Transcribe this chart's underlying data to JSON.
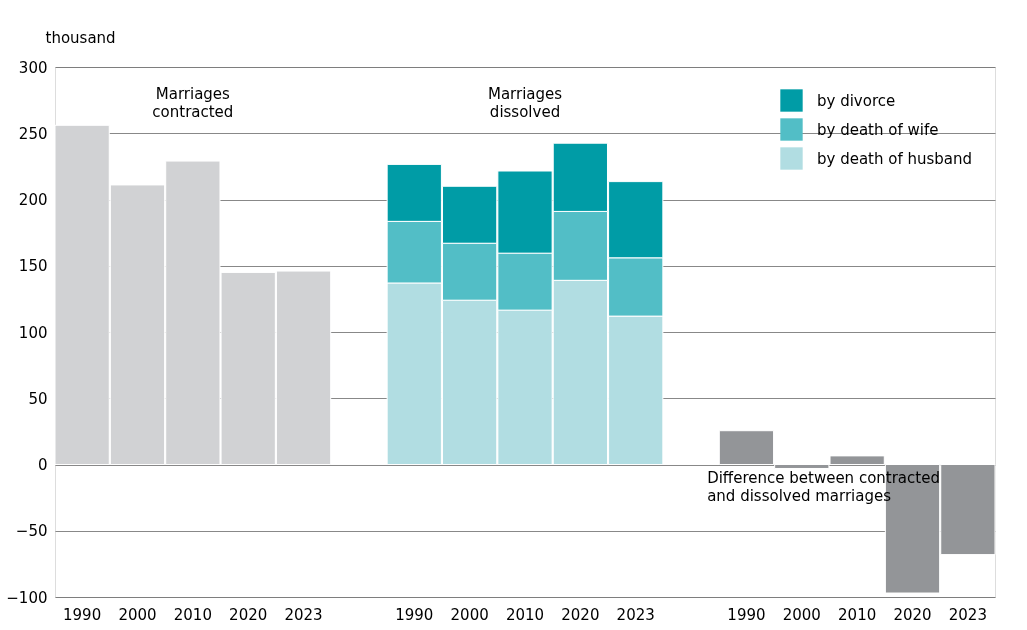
{
  "chart_data": {
    "type": "bar",
    "stacked": true,
    "ylabel": "thousand",
    "categories": [
      "1990",
      "2000",
      "2010",
      "2020",
      "2023",
      null,
      "1990",
      "2000",
      "2010",
      "2020",
      "2023",
      null,
      "1990",
      "2000",
      "2010",
      "2020",
      "2023"
    ],
    "series": [
      {
        "color": "#d1d2d4",
        "values": [
          256,
          211,
          229,
          145,
          146,
          null,
          null,
          null,
          null,
          null,
          null,
          null,
          null,
          null,
          null,
          null,
          null
        ]
      },
      {
        "name": "by death of husband",
        "color": "#b1dde2",
        "values": [
          null,
          null,
          null,
          null,
          null,
          null,
          137,
          124,
          116.5,
          139,
          112,
          null,
          null,
          null,
          null,
          null,
          null
        ]
      },
      {
        "name": "by death of wife",
        "color": "#52bec6",
        "values": [
          null,
          null,
          null,
          null,
          null,
          null,
          46.5,
          43,
          43,
          52,
          44,
          null,
          null,
          null,
          null,
          null,
          null
        ]
      },
      {
        "name": "by divorce",
        "color": "#009ca6",
        "values": [
          null,
          null,
          null,
          null,
          null,
          null,
          43,
          43,
          62,
          51.5,
          57.5,
          null,
          null,
          null,
          null,
          null,
          null
        ]
      },
      {
        "color": "#939598",
        "values": [
          null,
          null,
          null,
          null,
          null,
          null,
          null,
          null,
          null,
          null,
          null,
          null,
          25.5,
          -3,
          6.5,
          -97,
          -68
        ]
      }
    ],
    "ylim": [
      -100,
      300
    ],
    "yticks": [
      -100,
      -50,
      0,
      50,
      100,
      150,
      200,
      250,
      300
    ],
    "grid": "y",
    "legend": "top right",
    "annotations": [
      "Marriages contracted",
      "Marriages dissolved",
      "Difference between contracted and dissolved marriages"
    ]
  }
}
